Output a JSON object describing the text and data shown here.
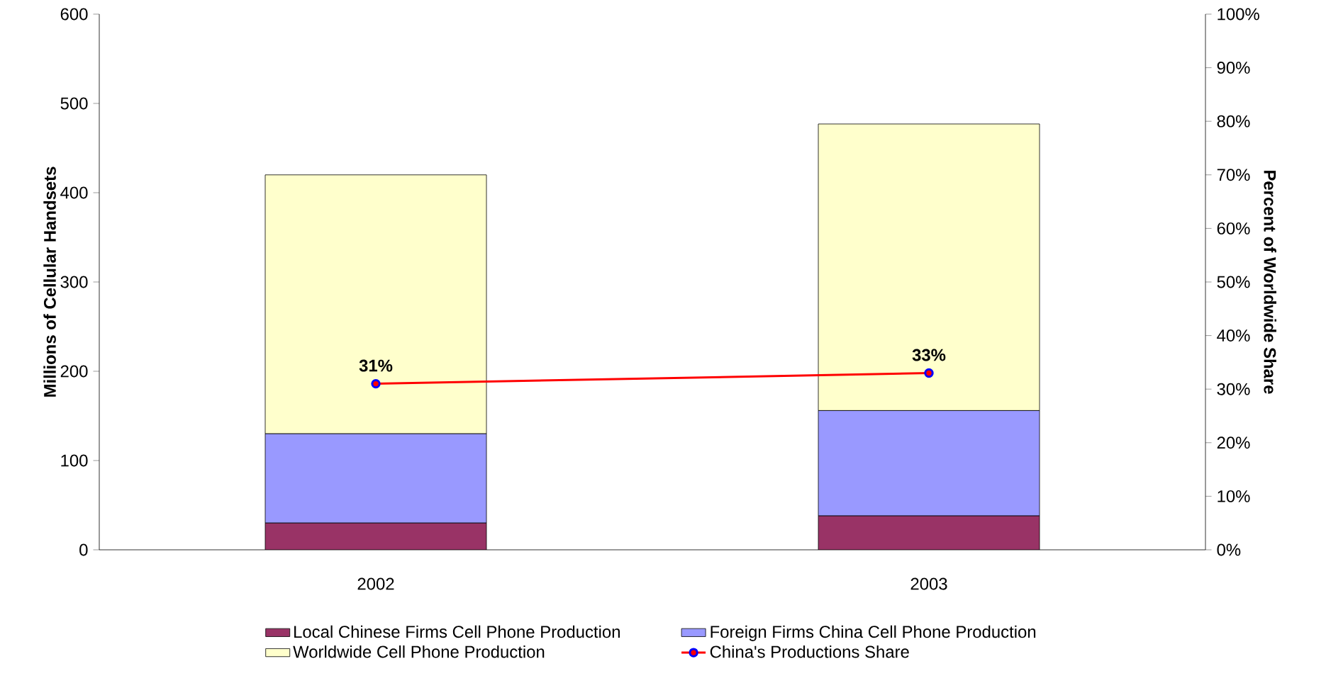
{
  "chart_data": {
    "type": "bar",
    "stacked": true,
    "categories": [
      "2002",
      "2003"
    ],
    "ylabel": "Millions of Cellular Handsets",
    "y2label": "Percent of Worldwide Share",
    "ylim": [
      0,
      600
    ],
    "yticks": [
      0,
      100,
      200,
      300,
      400,
      500,
      600
    ],
    "y2lim": [
      0,
      100
    ],
    "y2ticks": [
      {
        "value": 0,
        "label": "0%"
      },
      {
        "value": 10,
        "label": "10%"
      },
      {
        "value": 20,
        "label": "20%"
      },
      {
        "value": 30,
        "label": "30%"
      },
      {
        "value": 40,
        "label": "40%"
      },
      {
        "value": 50,
        "label": "50%"
      },
      {
        "value": 60,
        "label": "60%"
      },
      {
        "value": 70,
        "label": "70%"
      },
      {
        "value": 80,
        "label": "80%"
      },
      {
        "value": 90,
        "label": "90%"
      },
      {
        "value": 100,
        "label": "100%"
      }
    ],
    "legend": "bottom",
    "marker": "circle",
    "line_style": "solid",
    "series": [
      {
        "name": "Local Chinese Firms Cell Phone Production",
        "color": "#993366",
        "values": [
          30,
          38
        ]
      },
      {
        "name": "Foreign Firms China Cell Phone Production",
        "color": "#9999ff",
        "values": [
          100,
          118
        ]
      },
      {
        "name": "Worldwide Cell Phone Production",
        "color": "#ffffcc",
        "values": [
          290,
          321
        ]
      },
      {
        "name": "China's Productions Share",
        "type": "line",
        "axis": "y2",
        "color": "#ff0000",
        "values": [
          31,
          33
        ],
        "value_labels": [
          "31%",
          "33%"
        ]
      }
    ]
  }
}
